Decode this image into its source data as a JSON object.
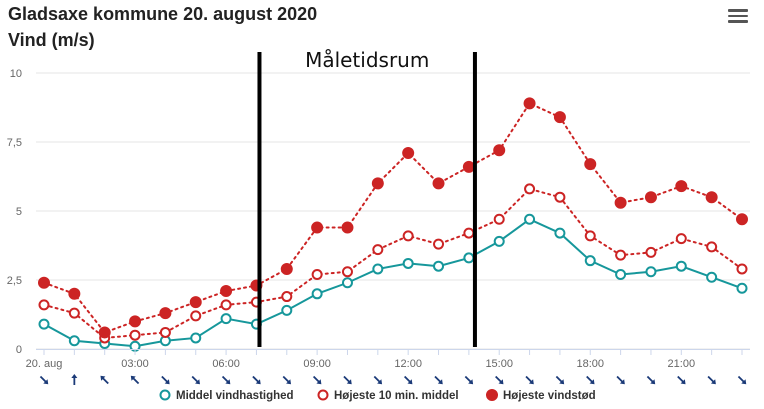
{
  "header": {
    "title": "Gladsaxe kommune 20. august 2020",
    "subtitle": "Vind (m/s)",
    "menu_icon": "hamburger-menu-icon"
  },
  "chart_data": {
    "type": "line",
    "title": "Gladsaxe kommune 20. august 2020",
    "ylabel": "Vind (m/s)",
    "ylim": [
      0,
      10
    ],
    "yticks": [
      0,
      2.5,
      5,
      7.5,
      10
    ],
    "ytick_labels": [
      "0",
      "2,5",
      "5",
      "7,5",
      "10"
    ],
    "x_hours": [
      0,
      1,
      2,
      3,
      4,
      5,
      6,
      7,
      8,
      9,
      10,
      11,
      12,
      13,
      14,
      15,
      16,
      17,
      18,
      19,
      20,
      21,
      22,
      23
    ],
    "xtick_hours": [
      0,
      3,
      6,
      9,
      12,
      15,
      18,
      21
    ],
    "xtick_labels": [
      "20. aug",
      "03:00",
      "06:00",
      "09:00",
      "12:00",
      "15:00",
      "18:00",
      "21:00"
    ],
    "grid": true,
    "series": [
      {
        "name": "Middel vindhastighed",
        "color": "#16979b",
        "marker": "hollow-circle",
        "line": "solid",
        "values": [
          0.9,
          0.3,
          0.2,
          0.1,
          0.3,
          0.4,
          1.1,
          0.9,
          1.4,
          2.0,
          2.4,
          2.9,
          3.1,
          3.0,
          3.3,
          3.9,
          4.7,
          4.2,
          3.2,
          2.7,
          2.8,
          3.0,
          2.6,
          2.2
        ]
      },
      {
        "name": "Højeste 10 min. middel",
        "color": "#cc2424",
        "marker": "hollow-circle",
        "line": "dotted",
        "values": [
          1.6,
          1.3,
          0.4,
          0.5,
          0.6,
          1.2,
          1.6,
          1.7,
          1.9,
          2.7,
          2.8,
          3.6,
          4.1,
          3.8,
          4.2,
          4.7,
          5.8,
          5.5,
          4.1,
          3.4,
          3.5,
          4.0,
          3.7,
          2.9
        ]
      },
      {
        "name": "Højeste vindstød",
        "color": "#cc2424",
        "marker": "filled-circle",
        "line": "dotted",
        "values": [
          2.4,
          2.0,
          0.6,
          1.0,
          1.3,
          1.7,
          2.1,
          2.3,
          2.9,
          4.4,
          4.4,
          6.0,
          7.1,
          6.0,
          6.6,
          7.2,
          8.9,
          8.4,
          6.7,
          5.3,
          5.5,
          5.9,
          5.5,
          4.7
        ]
      }
    ],
    "wind_direction_arrows_deg": [
      315,
      180,
      135,
      135,
      315,
      315,
      315,
      315,
      315,
      315,
      315,
      315,
      315,
      315,
      315,
      315,
      315,
      315,
      315,
      315,
      315,
      315,
      315,
      315
    ],
    "arrow_color": "#1b3a78",
    "measurement_period": {
      "label": "Måletidsrum",
      "start_hour": 7.1,
      "end_hour": 14.2
    },
    "legend_position": "bottom-center"
  }
}
